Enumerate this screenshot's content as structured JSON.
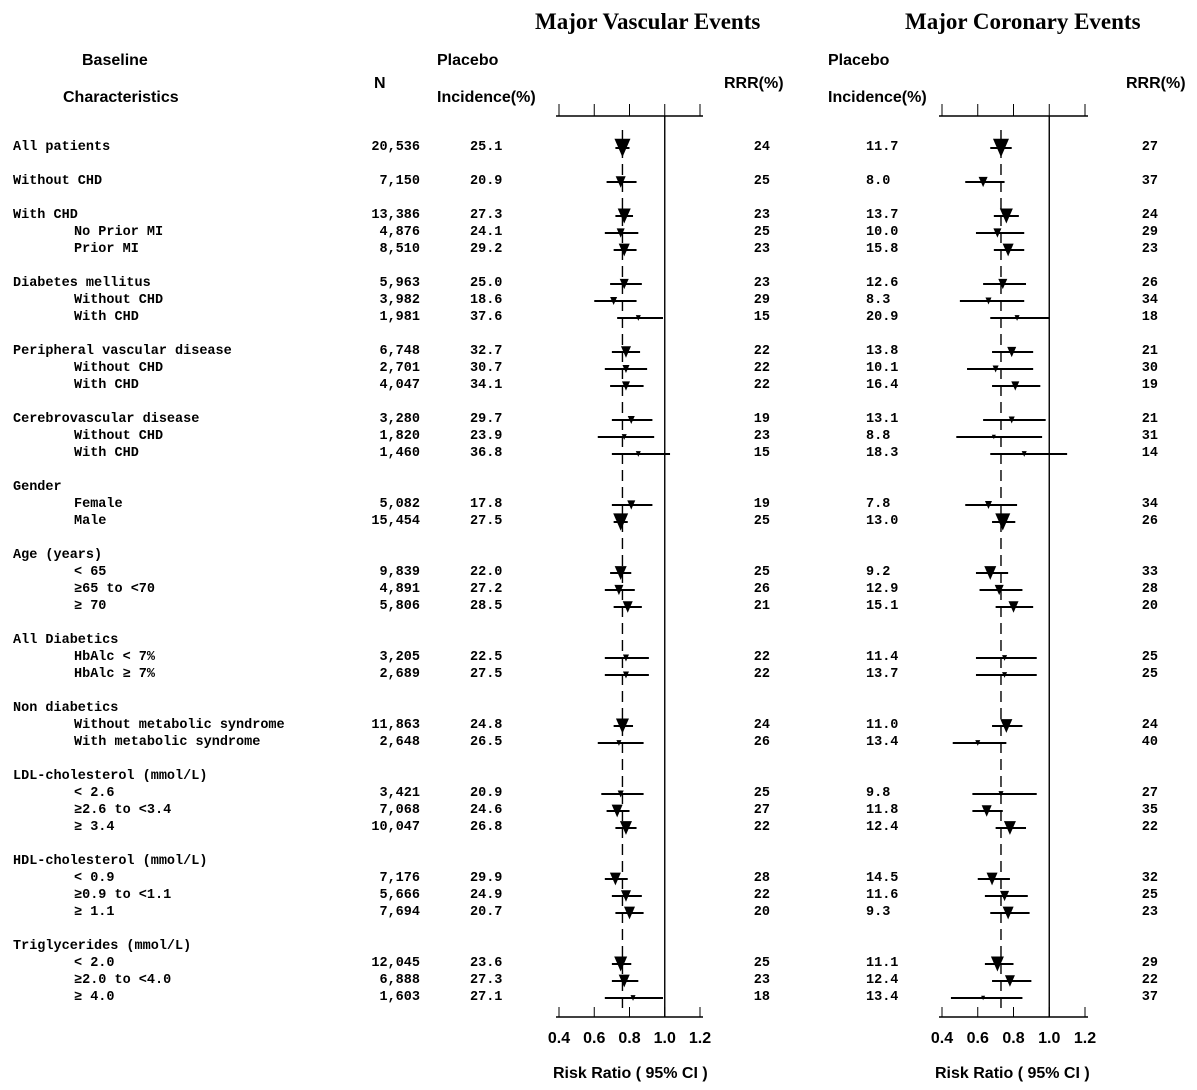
{
  "chart_data": {
    "type": "forest",
    "panel_titles": {
      "left": "Major Vascular Events",
      "right": "Major Coronary Events"
    },
    "column_headers": {
      "baseline_1": "Baseline",
      "baseline_2": "Characteristics",
      "n": "N",
      "placebo_1": "Placebo",
      "placebo_2": "Incidence(%)",
      "rrr": "RRR(%)"
    },
    "x_axis": {
      "scale": "linear",
      "ticks": [
        "0.4",
        "0.6",
        "0.8",
        "1.0",
        "1.2"
      ],
      "tick_values": [
        0.4,
        0.6,
        0.8,
        1.0,
        1.2
      ],
      "label": "Risk Ratio ( 95% CI )",
      "range": [
        0.4,
        1.2
      ],
      "reference_line": 1.0
    },
    "overall_rr": {
      "mve": 0.76,
      "mce": 0.73
    },
    "rows": [
      {
        "label": "All patients",
        "n": "20,536",
        "mve": {
          "inc": "25.1",
          "rrr": "24",
          "rr": 0.76,
          "lo": 0.72,
          "hi": 0.8,
          "size": 16
        },
        "mce": {
          "inc": "11.7",
          "rrr": "27",
          "rr": 0.73,
          "lo": 0.67,
          "hi": 0.79,
          "size": 16
        }
      },
      {
        "label": "Without CHD",
        "n": "7,150",
        "mve": {
          "inc": "20.9",
          "rrr": "25",
          "rr": 0.75,
          "lo": 0.67,
          "hi": 0.84,
          "size": 10
        },
        "mce": {
          "inc": "8.0",
          "rrr": "37",
          "rr": 0.63,
          "lo": 0.53,
          "hi": 0.75,
          "size": 9
        }
      },
      {
        "label": "With CHD",
        "n": "13,386",
        "mve": {
          "inc": "27.3",
          "rrr": "23",
          "rr": 0.77,
          "lo": 0.72,
          "hi": 0.82,
          "size": 13
        },
        "mce": {
          "inc": "13.7",
          "rrr": "24",
          "rr": 0.76,
          "lo": 0.69,
          "hi": 0.83,
          "size": 13
        }
      },
      {
        "label": "No Prior MI",
        "indent": 1,
        "n": "4,876",
        "mve": {
          "inc": "24.1",
          "rrr": "25",
          "rr": 0.75,
          "lo": 0.66,
          "hi": 0.85,
          "size": 8
        },
        "mce": {
          "inc": "10.0",
          "rrr": "29",
          "rr": 0.71,
          "lo": 0.59,
          "hi": 0.86,
          "size": 8
        }
      },
      {
        "label": "Prior MI",
        "indent": 1,
        "n": "8,510",
        "mve": {
          "inc": "29.2",
          "rrr": "23",
          "rr": 0.77,
          "lo": 0.71,
          "hi": 0.84,
          "size": 11
        },
        "mce": {
          "inc": "15.8",
          "rrr": "23",
          "rr": 0.77,
          "lo": 0.69,
          "hi": 0.86,
          "size": 11
        }
      },
      {
        "label": "Diabetes mellitus",
        "n": "5,963",
        "mve": {
          "inc": "25.0",
          "rrr": "23",
          "rr": 0.77,
          "lo": 0.69,
          "hi": 0.87,
          "size": 9
        },
        "mce": {
          "inc": "12.6",
          "rrr": "26",
          "rr": 0.74,
          "lo": 0.63,
          "hi": 0.87,
          "size": 9
        }
      },
      {
        "label": "Without CHD",
        "indent": 1,
        "n": "3,982",
        "mve": {
          "inc": "18.6",
          "rrr": "29",
          "rr": 0.71,
          "lo": 0.6,
          "hi": 0.84,
          "size": 7
        },
        "mce": {
          "inc": "8.3",
          "rrr": "34",
          "rr": 0.66,
          "lo": 0.5,
          "hi": 0.86,
          "size": 6
        }
      },
      {
        "label": "With CHD",
        "indent": 1,
        "n": "1,981",
        "mve": {
          "inc": "37.6",
          "rrr": "15",
          "rr": 0.85,
          "lo": 0.73,
          "hi": 0.99,
          "size": 5
        },
        "mce": {
          "inc": "20.9",
          "rrr": "18",
          "rr": 0.82,
          "lo": 0.67,
          "hi": 1.0,
          "size": 5
        }
      },
      {
        "label": "Peripheral vascular disease",
        "n": "6,748",
        "mve": {
          "inc": "32.7",
          "rrr": "22",
          "rr": 0.78,
          "lo": 0.7,
          "hi": 0.86,
          "size": 10
        },
        "mce": {
          "inc": "13.8",
          "rrr": "21",
          "rr": 0.79,
          "lo": 0.68,
          "hi": 0.91,
          "size": 9
        }
      },
      {
        "label": "Without CHD",
        "indent": 1,
        "n": "2,701",
        "mve": {
          "inc": "30.7",
          "rrr": "22",
          "rr": 0.78,
          "lo": 0.66,
          "hi": 0.9,
          "size": 7
        },
        "mce": {
          "inc": "10.1",
          "rrr": "30",
          "rr": 0.7,
          "lo": 0.54,
          "hi": 0.91,
          "size": 6
        }
      },
      {
        "label": "With CHD",
        "indent": 1,
        "n": "4,047",
        "mve": {
          "inc": "34.1",
          "rrr": "22",
          "rr": 0.78,
          "lo": 0.69,
          "hi": 0.88,
          "size": 8
        },
        "mce": {
          "inc": "16.4",
          "rrr": "19",
          "rr": 0.81,
          "lo": 0.68,
          "hi": 0.95,
          "size": 8
        }
      },
      {
        "label": "Cerebrovascular disease",
        "n": "3,280",
        "mve": {
          "inc": "29.7",
          "rrr": "19",
          "rr": 0.81,
          "lo": 0.7,
          "hi": 0.93,
          "size": 7
        },
        "mce": {
          "inc": "13.1",
          "rrr": "21",
          "rr": 0.79,
          "lo": 0.63,
          "hi": 0.98,
          "size": 6
        }
      },
      {
        "label": "Without CHD",
        "indent": 1,
        "n": "1,820",
        "mve": {
          "inc": "23.9",
          "rrr": "23",
          "rr": 0.77,
          "lo": 0.62,
          "hi": 0.94,
          "size": 5
        },
        "mce": {
          "inc": "8.8",
          "rrr": "31",
          "rr": 0.69,
          "lo": 0.48,
          "hi": 0.96,
          "size": 4
        }
      },
      {
        "label": "With CHD",
        "indent": 1,
        "n": "1,460",
        "mve": {
          "inc": "36.8",
          "rrr": "15",
          "rr": 0.85,
          "lo": 0.7,
          "hi": 1.03,
          "size": 5
        },
        "mce": {
          "inc": "18.3",
          "rrr": "14",
          "rr": 0.86,
          "lo": 0.67,
          "hi": 1.1,
          "size": 5
        }
      },
      {
        "label": "Gender",
        "heading": true
      },
      {
        "label": "Female",
        "indent": 1,
        "n": "5,082",
        "mve": {
          "inc": "17.8",
          "rrr": "19",
          "rr": 0.81,
          "lo": 0.7,
          "hi": 0.93,
          "size": 8
        },
        "mce": {
          "inc": "7.8",
          "rrr": "34",
          "rr": 0.66,
          "lo": 0.53,
          "hi": 0.82,
          "size": 7
        }
      },
      {
        "label": "Male",
        "indent": 1,
        "n": "15,454",
        "mve": {
          "inc": "27.5",
          "rrr": "25",
          "rr": 0.75,
          "lo": 0.71,
          "hi": 0.79,
          "size": 15
        },
        "mce": {
          "inc": "13.0",
          "rrr": "26",
          "rr": 0.74,
          "lo": 0.68,
          "hi": 0.81,
          "size": 15
        }
      },
      {
        "label": "Age (years)",
        "heading": true
      },
      {
        "label": "< 65",
        "indent": 1,
        "n": "9,839",
        "mve": {
          "inc": "22.0",
          "rrr": "25",
          "rr": 0.75,
          "lo": 0.69,
          "hi": 0.81,
          "size": 12
        },
        "mce": {
          "inc": "9.2",
          "rrr": "33",
          "rr": 0.67,
          "lo": 0.59,
          "hi": 0.77,
          "size": 12
        }
      },
      {
        "label": "≥65 to <70",
        "indent": 1,
        "n": "4,891",
        "mve": {
          "inc": "27.2",
          "rrr": "26",
          "rr": 0.74,
          "lo": 0.66,
          "hi": 0.83,
          "size": 9
        },
        "mce": {
          "inc": "12.9",
          "rrr": "28",
          "rr": 0.72,
          "lo": 0.61,
          "hi": 0.85,
          "size": 9
        }
      },
      {
        "label": "≥ 70",
        "indent": 1,
        "n": "5,806",
        "mve": {
          "inc": "28.5",
          "rrr": "21",
          "rr": 0.79,
          "lo": 0.71,
          "hi": 0.87,
          "size": 10
        },
        "mce": {
          "inc": "15.1",
          "rrr": "20",
          "rr": 0.8,
          "lo": 0.7,
          "hi": 0.91,
          "size": 10
        }
      },
      {
        "label": "All Diabetics",
        "heading": true
      },
      {
        "label": "HbAlc < 7%",
        "indent": 1,
        "n": "3,205",
        "mve": {
          "inc": "22.5",
          "rrr": "22",
          "rr": 0.78,
          "lo": 0.66,
          "hi": 0.91,
          "size": 6
        },
        "mce": {
          "inc": "11.4",
          "rrr": "25",
          "rr": 0.75,
          "lo": 0.59,
          "hi": 0.93,
          "size": 5
        }
      },
      {
        "label": "HbAlc ≥ 7%",
        "indent": 1,
        "n": "2,689",
        "mve": {
          "inc": "27.5",
          "rrr": "22",
          "rr": 0.78,
          "lo": 0.66,
          "hi": 0.91,
          "size": 6
        },
        "mce": {
          "inc": "13.7",
          "rrr": "25",
          "rr": 0.75,
          "lo": 0.59,
          "hi": 0.93,
          "size": 5
        }
      },
      {
        "label": "Non diabetics",
        "heading": true
      },
      {
        "label": "Without metabolic syndrome",
        "indent": 1,
        "n": "11,863",
        "mve": {
          "inc": "24.8",
          "rrr": "24",
          "rr": 0.76,
          "lo": 0.71,
          "hi": 0.82,
          "size": 13
        },
        "mce": {
          "inc": "11.0",
          "rrr": "24",
          "rr": 0.76,
          "lo": 0.68,
          "hi": 0.85,
          "size": 12
        }
      },
      {
        "label": "With metabolic syndrome",
        "indent": 1,
        "n": "2,648",
        "mve": {
          "inc": "26.5",
          "rrr": "26",
          "rr": 0.74,
          "lo": 0.62,
          "hi": 0.88,
          "size": 5
        },
        "mce": {
          "inc": "13.4",
          "rrr": "40",
          "rr": 0.6,
          "lo": 0.46,
          "hi": 0.76,
          "size": 5
        }
      },
      {
        "label": "LDL-cholesterol (mmol/L)",
        "heading": true
      },
      {
        "label": "< 2.6",
        "indent": 1,
        "n": "3,421",
        "mve": {
          "inc": "20.9",
          "rrr": "25",
          "rr": 0.75,
          "lo": 0.64,
          "hi": 0.88,
          "size": 6
        },
        "mce": {
          "inc": "9.8",
          "rrr": "27",
          "rr": 0.73,
          "lo": 0.57,
          "hi": 0.93,
          "size": 5
        }
      },
      {
        "label": "≥2.6 to <3.4",
        "indent": 1,
        "n": "7,068",
        "mve": {
          "inc": "24.6",
          "rrr": "27",
          "rr": 0.73,
          "lo": 0.67,
          "hi": 0.8,
          "size": 11
        },
        "mce": {
          "inc": "11.8",
          "rrr": "35",
          "rr": 0.65,
          "lo": 0.57,
          "hi": 0.74,
          "size": 10
        }
      },
      {
        "label": "≥ 3.4",
        "indent": 1,
        "n": "10,047",
        "mve": {
          "inc": "26.8",
          "rrr": "22",
          "rr": 0.78,
          "lo": 0.72,
          "hi": 0.84,
          "size": 12
        },
        "mce": {
          "inc": "12.4",
          "rrr": "22",
          "rr": 0.78,
          "lo": 0.7,
          "hi": 0.87,
          "size": 12
        }
      },
      {
        "label": "HDL-cholesterol (mmol/L)",
        "heading": true
      },
      {
        "label": "< 0.9",
        "indent": 1,
        "n": "7,176",
        "mve": {
          "inc": "29.9",
          "rrr": "28",
          "rr": 0.72,
          "lo": 0.66,
          "hi": 0.79,
          "size": 11
        },
        "mce": {
          "inc": "14.5",
          "rrr": "32",
          "rr": 0.68,
          "lo": 0.6,
          "hi": 0.78,
          "size": 11
        }
      },
      {
        "label": "≥0.9 to <1.1",
        "indent": 1,
        "n": "5,666",
        "mve": {
          "inc": "24.9",
          "rrr": "22",
          "rr": 0.78,
          "lo": 0.7,
          "hi": 0.87,
          "size": 10
        },
        "mce": {
          "inc": "11.6",
          "rrr": "25",
          "rr": 0.75,
          "lo": 0.64,
          "hi": 0.88,
          "size": 9
        }
      },
      {
        "label": "≥ 1.1",
        "indent": 1,
        "n": "7,694",
        "mve": {
          "inc": "20.7",
          "rrr": "20",
          "rr": 0.8,
          "lo": 0.72,
          "hi": 0.88,
          "size": 11
        },
        "mce": {
          "inc": "9.3",
          "rrr": "23",
          "rr": 0.77,
          "lo": 0.67,
          "hi": 0.89,
          "size": 11
        }
      },
      {
        "label": "Triglycerides (mmol/L)",
        "heading": true
      },
      {
        "label": "< 2.0",
        "indent": 1,
        "n": "12,045",
        "mve": {
          "inc": "23.6",
          "rrr": "25",
          "rr": 0.75,
          "lo": 0.7,
          "hi": 0.81,
          "size": 13
        },
        "mce": {
          "inc": "11.1",
          "rrr": "29",
          "rr": 0.71,
          "lo": 0.64,
          "hi": 0.8,
          "size": 13
        }
      },
      {
        "label": "≥2.0 to <4.0",
        "indent": 1,
        "n": "6,888",
        "mve": {
          "inc": "27.3",
          "rrr": "23",
          "rr": 0.77,
          "lo": 0.7,
          "hi": 0.85,
          "size": 11
        },
        "mce": {
          "inc": "12.4",
          "rrr": "22",
          "rr": 0.78,
          "lo": 0.68,
          "hi": 0.9,
          "size": 10
        }
      },
      {
        "label": "≥ 4.0",
        "indent": 1,
        "n": "1,603",
        "mve": {
          "inc": "27.1",
          "rrr": "18",
          "rr": 0.82,
          "lo": 0.66,
          "hi": 0.99,
          "size": 5
        },
        "mce": {
          "inc": "13.4",
          "rrr": "37",
          "rr": 0.63,
          "lo": 0.45,
          "hi": 0.85,
          "size": 4
        }
      }
    ]
  }
}
